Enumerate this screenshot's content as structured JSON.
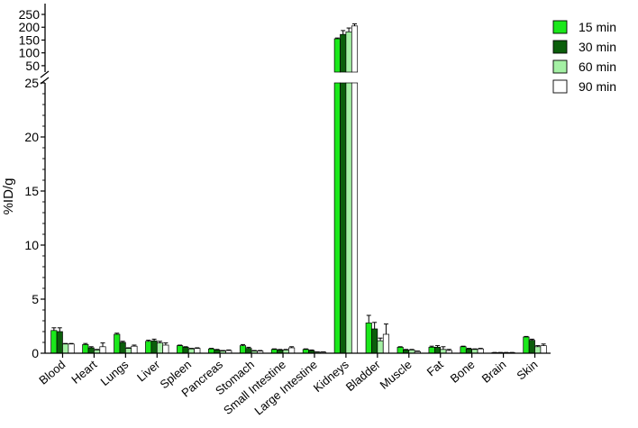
{
  "chart_data": {
    "type": "bar",
    "title": "",
    "xlabel": "",
    "ylabel": "%ID/g",
    "y_axis_break": true,
    "ylim_lower": [
      0,
      25
    ],
    "ylim_upper": [
      25,
      250
    ],
    "yticks_lower": [
      "0",
      "5",
      "10",
      "15",
      "20",
      "25"
    ],
    "yticks_upper": [
      "50",
      "100",
      "150",
      "200",
      "250"
    ],
    "legend_position": "top-right",
    "grid": false,
    "categories": [
      "Blood",
      "Heart",
      "Lungs",
      "Liver",
      "Spleen",
      "Pancreas",
      "Stomach",
      "Small Intestine",
      "Large Intestine",
      "Kidneys",
      "Bladder",
      "Muscle",
      "Fat",
      "Bone",
      "Brain",
      "Skin"
    ],
    "series": [
      {
        "name": "15 min",
        "color": "#1be81b",
        "values": [
          2.1,
          0.8,
          1.75,
          1.1,
          0.7,
          0.4,
          0.7,
          0.35,
          0.35,
          155,
          2.8,
          0.55,
          0.55,
          0.6,
          0.05,
          1.5
        ],
        "errors": [
          0.25,
          0.1,
          0.1,
          0.1,
          0.05,
          0.05,
          0.1,
          0.05,
          0.05,
          3,
          0.7,
          0.05,
          0.1,
          0.05,
          0.02,
          0.05
        ]
      },
      {
        "name": "30 min",
        "color": "#0b5e0b",
        "values": [
          2.0,
          0.5,
          1.0,
          1.15,
          0.55,
          0.3,
          0.45,
          0.3,
          0.25,
          172,
          2.25,
          0.3,
          0.55,
          0.4,
          0.05,
          1.2
        ],
        "errors": [
          0.35,
          0.1,
          0.1,
          0.15,
          0.05,
          0.05,
          0.1,
          0.05,
          0.05,
          15,
          0.6,
          0.05,
          0.15,
          0.05,
          0.02,
          0.1
        ]
      },
      {
        "name": "60 min",
        "color": "#a4f0a4",
        "values": [
          0.85,
          0.3,
          0.45,
          0.95,
          0.4,
          0.2,
          0.2,
          0.3,
          0.1,
          182,
          1.15,
          0.3,
          0.35,
          0.35,
          0.05,
          0.6
        ],
        "errors": [
          0.05,
          0.05,
          0.05,
          0.15,
          0.05,
          0.05,
          0.05,
          0.05,
          0.02,
          15,
          0.25,
          0.05,
          0.25,
          0.05,
          0.02,
          0.1
        ]
      },
      {
        "name": "90 min",
        "color": "#ffffff",
        "values": [
          0.85,
          0.6,
          0.65,
          0.75,
          0.45,
          0.25,
          0.2,
          0.5,
          0.1,
          205,
          1.75,
          0.15,
          0.25,
          0.4,
          0.05,
          0.7
        ],
        "errors": [
          0.05,
          0.35,
          0.1,
          0.2,
          0.05,
          0.05,
          0.05,
          0.1,
          0.02,
          8,
          0.95,
          0.05,
          0.1,
          0.05,
          0.02,
          0.15
        ]
      }
    ]
  }
}
